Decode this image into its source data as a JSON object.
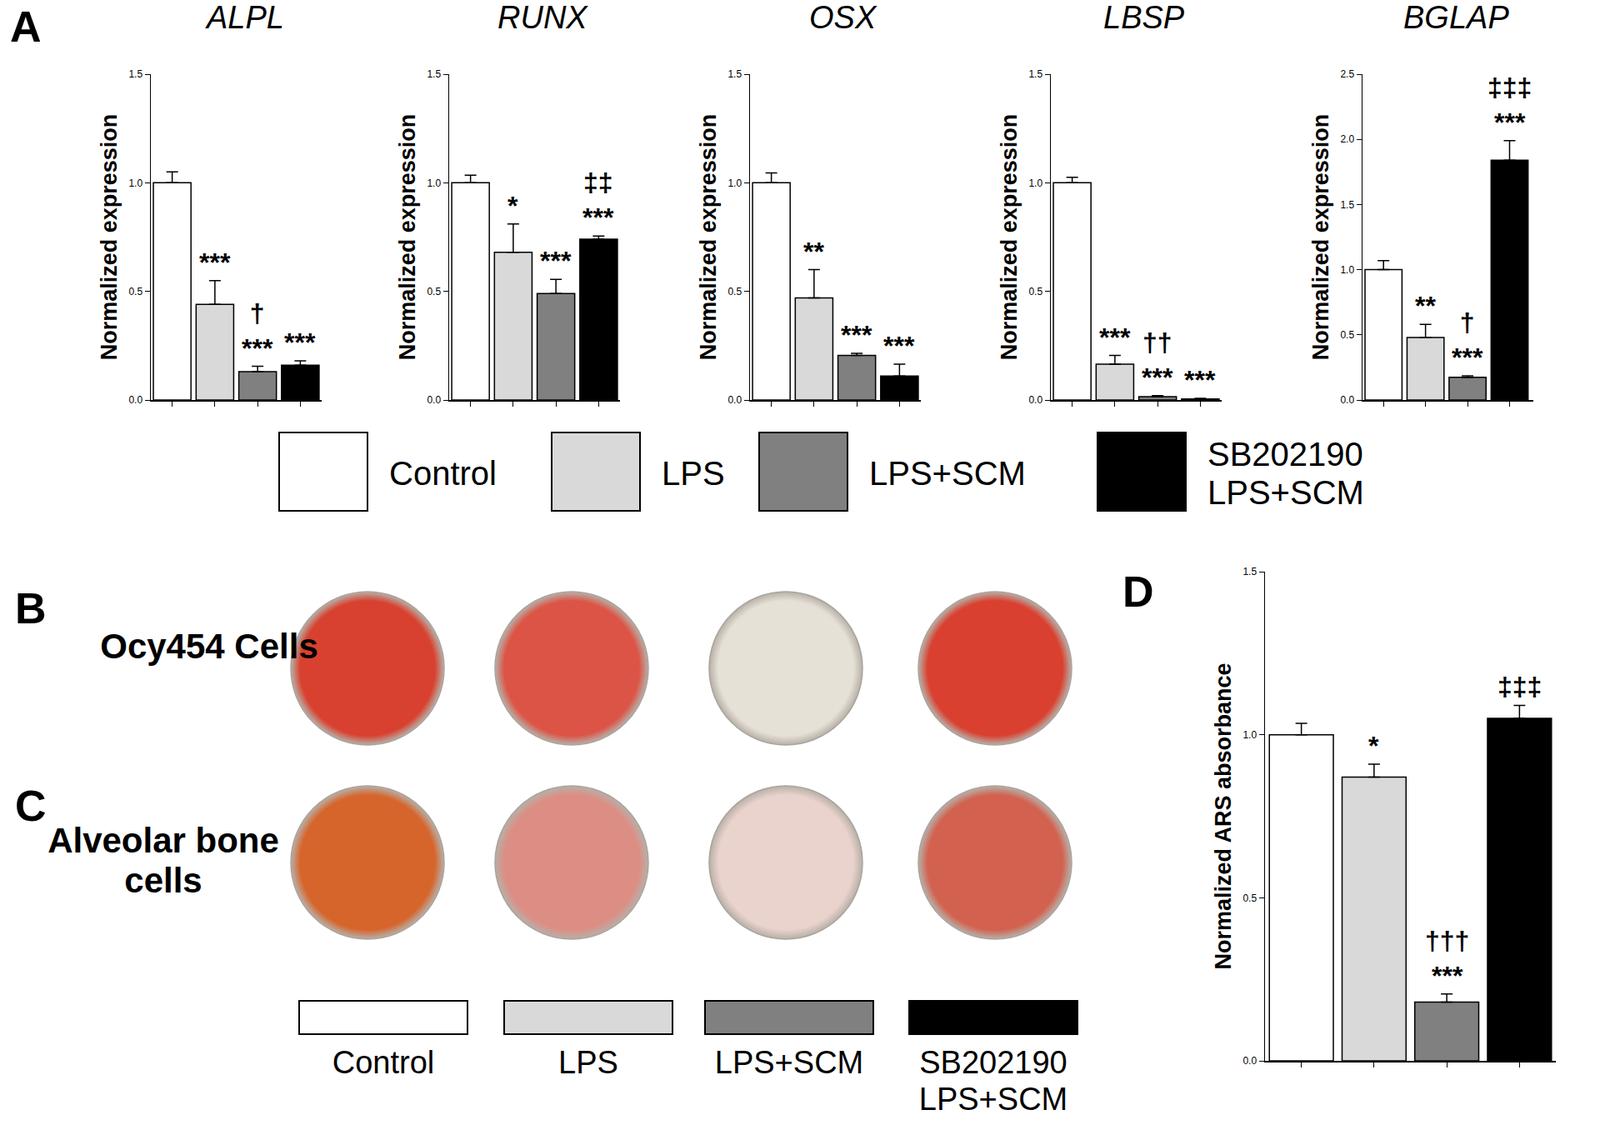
{
  "panels": [
    "A",
    "B",
    "C",
    "D"
  ],
  "conditions": [
    {
      "name": "Control",
      "color": "#ffffff"
    },
    {
      "name": "LPS",
      "color": "#d9d9d9"
    },
    {
      "name": "LPS+SCM",
      "color": "#808080"
    },
    {
      "name": "SB202190 LPS+SCM",
      "color": "#000000"
    }
  ],
  "images": [
    {
      "label": "Ocy454 Cells",
      "colors": [
        "#d8412f",
        "#dc5446",
        "#e6e1d6",
        "#d9402f"
      ]
    },
    {
      "label": "Alveolar bone cells",
      "colors": [
        "#d6652c",
        "#dc8e84",
        "#e9d3cc",
        "#d2614f"
      ]
    }
  ],
  "chart_data": [
    {
      "type": "bar",
      "title": "ALPL",
      "ylabel": "Normalized expression",
      "categories": [
        "Control",
        "LPS",
        "LPS+SCM",
        "SB202190 LPS+SCM"
      ],
      "values": [
        1.0,
        0.44,
        0.13,
        0.16
      ],
      "errors": [
        0.05,
        0.11,
        0.025,
        0.02
      ],
      "significance": [
        null,
        [
          "***"
        ],
        [
          "†",
          "***"
        ],
        [
          "***"
        ]
      ],
      "colors": [
        "#ffffff",
        "#d9d9d9",
        "#808080",
        "#000000"
      ],
      "ylim": [
        0,
        1.5
      ],
      "yticks": [
        {
          "value": 0,
          "label": "0.0"
        },
        {
          "value": 0.5,
          "label": "0.5"
        },
        {
          "value": 1,
          "label": "1.0"
        },
        {
          "value": 1.5,
          "label": "1.5"
        }
      ],
      "grid": false,
      "tick_labels": "y"
    },
    {
      "type": "bar",
      "title": "RUNX",
      "ylabel": "Normalized expression",
      "categories": [
        "Control",
        "LPS",
        "LPS+SCM",
        "SB202190 LPS+SCM"
      ],
      "values": [
        1.0,
        0.68,
        0.49,
        0.74
      ],
      "errors": [
        0.035,
        0.13,
        0.065,
        0.015
      ],
      "significance": [
        null,
        [
          "*"
        ],
        [
          "***"
        ],
        [
          "‡‡",
          "***"
        ]
      ],
      "colors": [
        "#ffffff",
        "#d9d9d9",
        "#808080",
        "#000000"
      ],
      "ylim": [
        0,
        1.5
      ],
      "yticks": [
        {
          "value": 0,
          "label": "0.0"
        },
        {
          "value": 0.5,
          "label": "0.5"
        },
        {
          "value": 1,
          "label": "1.0"
        },
        {
          "value": 1.5,
          "label": "1.5"
        }
      ],
      "grid": false,
      "tick_labels": "y"
    },
    {
      "type": "bar",
      "title": "OSX",
      "ylabel": "Normalized expression",
      "categories": [
        "Control",
        "LPS",
        "LPS+SCM",
        "SB202190 LPS+SCM"
      ],
      "values": [
        1.0,
        0.47,
        0.205,
        0.11
      ],
      "errors": [
        0.045,
        0.13,
        0.01,
        0.055
      ],
      "significance": [
        null,
        [
          "**"
        ],
        [
          "***"
        ],
        [
          "***"
        ]
      ],
      "colors": [
        "#ffffff",
        "#d9d9d9",
        "#808080",
        "#000000"
      ],
      "ylim": [
        0,
        1.5
      ],
      "yticks": [
        {
          "value": 0,
          "label": "0.0"
        },
        {
          "value": 0.5,
          "label": "0.5"
        },
        {
          "value": 1,
          "label": "1.0"
        },
        {
          "value": 1.5,
          "label": "1.5"
        }
      ],
      "grid": false,
      "tick_labels": "y"
    },
    {
      "type": "bar",
      "title": "LBSP",
      "ylabel": "Normalized expression",
      "categories": [
        "Control",
        "LPS",
        "LPS+SCM",
        "SB202190 LPS+SCM"
      ],
      "values": [
        1.0,
        0.165,
        0.015,
        0.005
      ],
      "errors": [
        0.025,
        0.04,
        0.005,
        0.003
      ],
      "significance": [
        null,
        [
          "***"
        ],
        [
          "††",
          "***"
        ],
        [
          "***"
        ]
      ],
      "colors": [
        "#ffffff",
        "#d9d9d9",
        "#808080",
        "#000000"
      ],
      "ylim": [
        0,
        1.5
      ],
      "yticks": [
        {
          "value": 0,
          "label": "0.0"
        },
        {
          "value": 0.5,
          "label": "0.5"
        },
        {
          "value": 1,
          "label": "1.0"
        },
        {
          "value": 1.5,
          "label": "1.5"
        }
      ],
      "grid": false,
      "tick_labels": "y"
    },
    {
      "type": "bar",
      "title": "BGLAP",
      "ylabel": "Normalized expression",
      "categories": [
        "Control",
        "LPS",
        "LPS+SCM",
        "SB202190 LPS+SCM"
      ],
      "values": [
        1.0,
        0.48,
        0.175,
        1.84
      ],
      "errors": [
        0.07,
        0.1,
        0.01,
        0.15
      ],
      "significance": [
        null,
        [
          "**"
        ],
        [
          "†",
          "***"
        ],
        [
          "‡‡‡",
          "***"
        ]
      ],
      "colors": [
        "#ffffff",
        "#d9d9d9",
        "#808080",
        "#000000"
      ],
      "ylim": [
        0,
        2.5
      ],
      "yticks": [
        {
          "value": 0,
          "label": "0.0"
        },
        {
          "value": 0.5,
          "label": "0.5"
        },
        {
          "value": 1,
          "label": "1.0"
        },
        {
          "value": 1.5,
          "label": "1.5"
        },
        {
          "value": 2,
          "label": "2.0"
        },
        {
          "value": 2.5,
          "label": "2.5"
        }
      ],
      "grid": false,
      "tick_labels": "y"
    },
    {
      "type": "bar",
      "ylabel": "Normalized ARS absorbance",
      "categories": [
        "Control",
        "LPS",
        "LPS+SCM",
        "SB202190 LPS+SCM"
      ],
      "values": [
        1.0,
        0.87,
        0.18,
        1.05
      ],
      "errors": [
        0.035,
        0.04,
        0.025,
        0.04
      ],
      "significance": [
        null,
        [
          "*"
        ],
        [
          "†††",
          "***"
        ],
        [
          "‡‡‡"
        ]
      ],
      "colors": [
        "#ffffff",
        "#d9d9d9",
        "#808080",
        "#000000"
      ],
      "ylim": [
        0,
        1.5
      ],
      "yticks": [
        {
          "value": 0,
          "label": "0.0"
        },
        {
          "value": 0.5,
          "label": "0.5"
        },
        {
          "value": 1,
          "label": "1.0"
        },
        {
          "value": 1.5,
          "label": "1.5"
        }
      ],
      "grid": false,
      "tick_labels": "y"
    }
  ]
}
